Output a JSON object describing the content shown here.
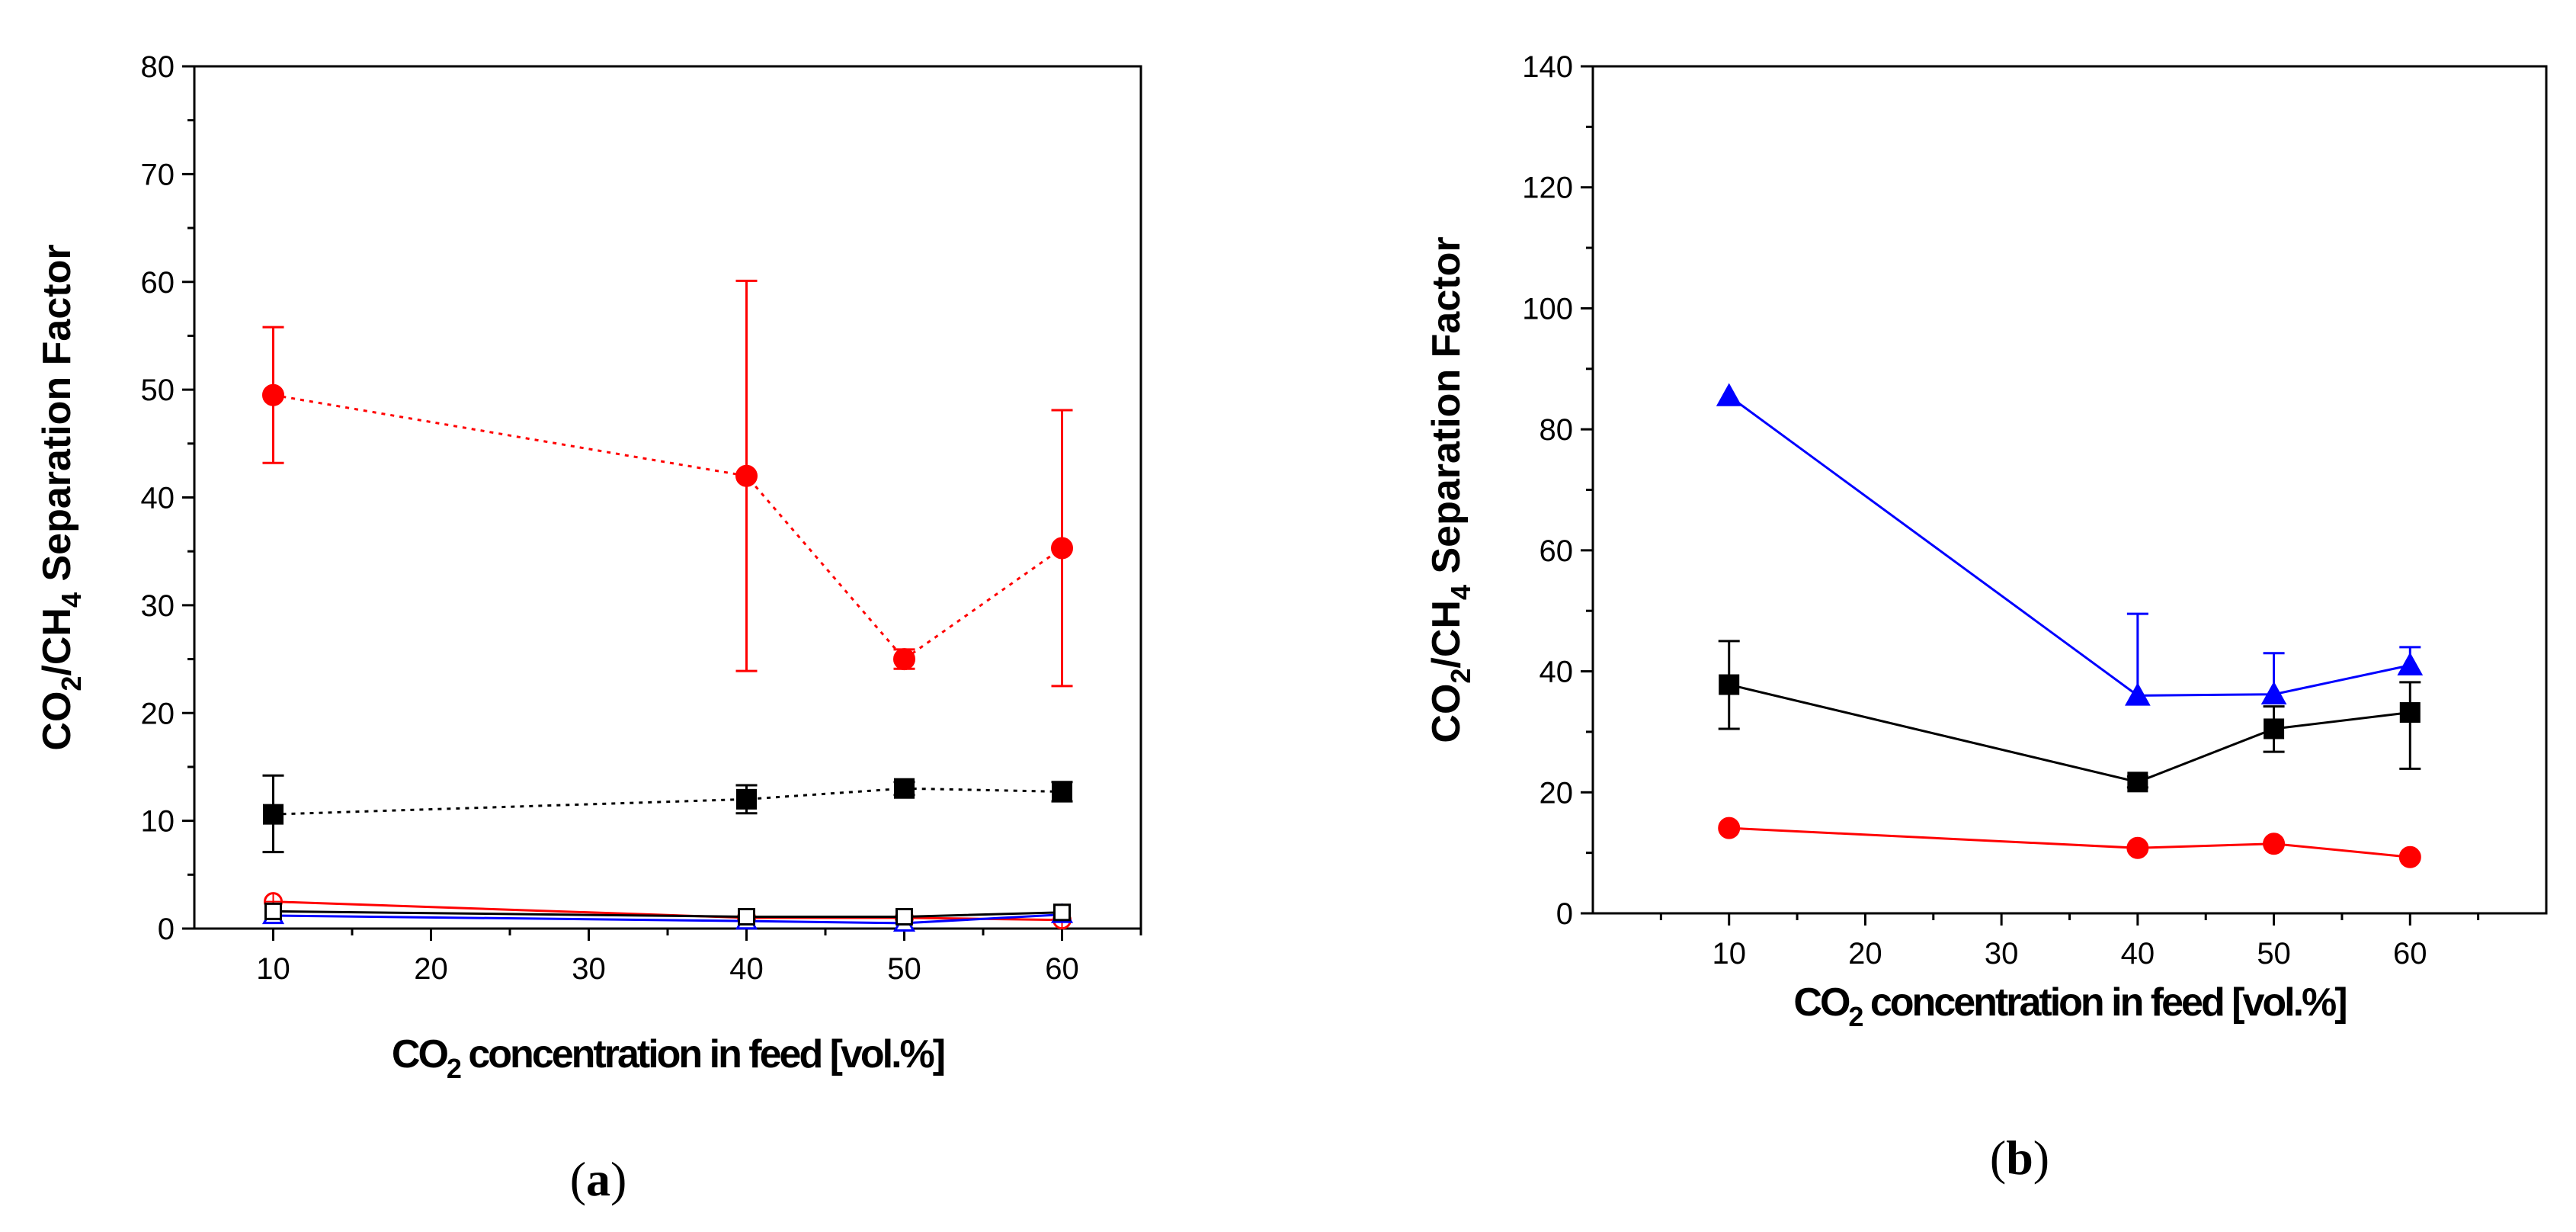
{
  "chart_data": [
    {
      "type": "line",
      "panel_label": "a",
      "ylabel": {
        "base": "CO",
        "s1": "2",
        "mid": "/CH",
        "s2": "4",
        "rest": " Separation Factor"
      },
      "xlabel": {
        "base": "CO",
        "s1": "2",
        "rest": " concentration in feed [vol.%]"
      },
      "xlim": [
        5,
        65
      ],
      "ylim": [
        0,
        80
      ],
      "xticks": [
        10,
        20,
        30,
        40,
        50,
        60
      ],
      "yticks": [
        0,
        10,
        20,
        30,
        40,
        50,
        60,
        70,
        80
      ],
      "x": [
        10,
        40,
        50,
        60
      ],
      "series": [
        {
          "name": "red filled circles (dotted)",
          "color": "#ff0000",
          "marker": "circle",
          "filled": true,
          "line": "dotted",
          "values": [
            49.5,
            42,
            25,
            35.3
          ],
          "err_high": [
            55.8,
            60.1,
            25.9,
            48.1
          ],
          "err_low": [
            43.2,
            23.9,
            24.1,
            22.5
          ]
        },
        {
          "name": "black filled squares (dotted)",
          "color": "#000000",
          "marker": "square",
          "filled": true,
          "line": "dotted",
          "values": [
            10.6,
            12,
            13,
            12.7
          ],
          "err_high": [
            14.2,
            13.3,
            13.6,
            13.6
          ],
          "err_low": [
            7.1,
            10.7,
            12.4,
            11.8
          ]
        },
        {
          "name": "red open circles",
          "color": "#ff0000",
          "marker": "circle",
          "filled": false,
          "line": "solid",
          "values": [
            2.5,
            1.0,
            1.0,
            0.8
          ]
        },
        {
          "name": "blue open triangles",
          "color": "#0000ff",
          "marker": "triangle",
          "filled": false,
          "line": "solid",
          "values": [
            1.2,
            0.7,
            0.5,
            1.3
          ]
        },
        {
          "name": "black open squares",
          "color": "#000000",
          "marker": "square",
          "filled": false,
          "line": "solid",
          "values": [
            1.6,
            1.1,
            1.1,
            1.5
          ]
        }
      ]
    },
    {
      "type": "line",
      "panel_label": "b",
      "ylabel": {
        "base": "CO",
        "s1": "2",
        "mid": "/CH",
        "s2": "4",
        "rest": " Separation Factor"
      },
      "xlabel": {
        "base": "CO",
        "s1": "2",
        "rest": " concentration in feed [vol.%]"
      },
      "xlim": [
        0,
        70
      ],
      "ylim": [
        0,
        140
      ],
      "xticks": [
        10,
        20,
        30,
        40,
        50,
        60
      ],
      "yticks": [
        0,
        20,
        40,
        60,
        80,
        100,
        120,
        140
      ],
      "x": [
        10,
        40,
        50,
        60
      ],
      "series": [
        {
          "name": "blue triangles",
          "color": "#0000ff",
          "marker": "triangle",
          "filled": true,
          "line": "solid",
          "values": [
            85.5,
            36,
            36.2,
            41
          ],
          "err_high": [
            null,
            49.5,
            43,
            44
          ],
          "err_low": [
            null,
            null,
            null,
            null
          ]
        },
        {
          "name": "black squares",
          "color": "#000000",
          "marker": "square",
          "filled": true,
          "line": "solid",
          "values": [
            37.8,
            21.7,
            30.5,
            33.2
          ],
          "err_high": [
            45,
            22.6,
            34.2,
            38.2
          ],
          "err_low": [
            30.5,
            20.8,
            26.7,
            23.9
          ]
        },
        {
          "name": "red circles",
          "color": "#ff0000",
          "marker": "circle",
          "filled": true,
          "line": "solid",
          "values": [
            14.1,
            10.8,
            11.5,
            9.3
          ]
        }
      ]
    }
  ]
}
